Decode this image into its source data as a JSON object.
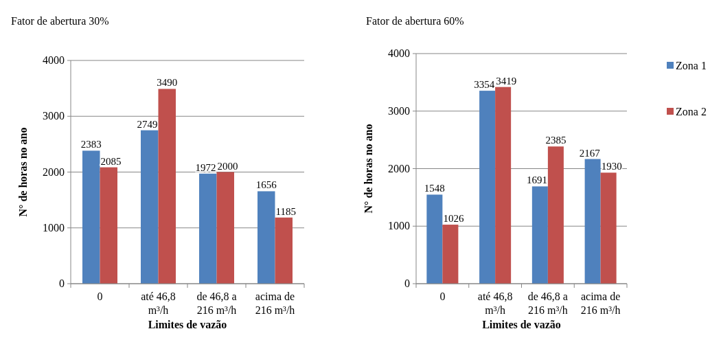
{
  "chart_data": [
    {
      "type": "bar",
      "title": "Fator de abertura 30%",
      "xlabel": "Limites de vazão",
      "ylabel": "N° de horas no ano",
      "categories": [
        "0",
        "até 46,8 m³/h",
        "de 46,8 a 216 m³/h",
        "acima de 216 m³/h"
      ],
      "series": [
        {
          "color": "#4f81bd",
          "values": [
            2383,
            2749,
            1972,
            1656
          ]
        },
        {
          "color": "#c0504d",
          "values": [
            2085,
            3490,
            2000,
            1185
          ]
        }
      ],
      "ylim": [
        0,
        4000
      ],
      "yticks": [
        0,
        1000,
        2000,
        3000,
        4000
      ],
      "grid": "y",
      "data_labels": true,
      "legend": false
    },
    {
      "type": "bar",
      "title": "Fator de abertura 60%",
      "xlabel": "Limites de vazão",
      "ylabel": "N° de horas no ano",
      "categories": [
        "0",
        "até 46,8 m³/h",
        "de 46,8 a 216 m³/h",
        "acima de 216 m³/h"
      ],
      "series": [
        {
          "name": "Zona 1",
          "color": "#4f81bd",
          "values": [
            1548,
            3354,
            1691,
            2167
          ]
        },
        {
          "name": "Zona 2",
          "color": "#c0504d",
          "values": [
            1026,
            3419,
            2385,
            1930
          ]
        }
      ],
      "ylim": [
        0,
        4000
      ],
      "yticks": [
        0,
        1000,
        2000,
        3000,
        4000
      ],
      "grid": "y",
      "data_labels": true,
      "legend": "right"
    }
  ]
}
